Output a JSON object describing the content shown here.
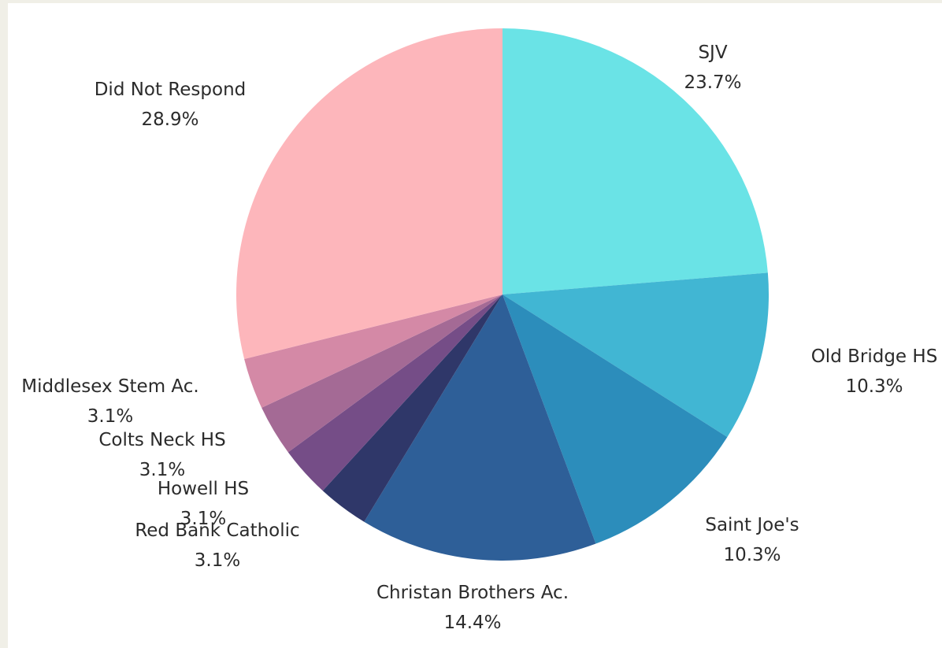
{
  "chart_data": {
    "type": "pie",
    "title": "",
    "slices": [
      {
        "label": "SJV",
        "value": 23.7,
        "display": "23.7%",
        "color": "#6ae3e6"
      },
      {
        "label": "Old Bridge HS",
        "value": 10.3,
        "display": "10.3%",
        "color": "#41b6d3"
      },
      {
        "label": "Saint Joe's",
        "value": 10.3,
        "display": "10.3%",
        "color": "#2c8dbb"
      },
      {
        "label": "Christan Brothers Ac.",
        "value": 14.4,
        "display": "14.4%",
        "color": "#2e5f98"
      },
      {
        "label": "Red Bank Catholic",
        "value": 3.1,
        "display": "3.1%",
        "color": "#2f3769"
      },
      {
        "label": "Howell HS",
        "value": 3.1,
        "display": "3.1%",
        "color": "#754d87"
      },
      {
        "label": "Colts Neck HS",
        "value": 3.1,
        "display": "3.1%",
        "color": "#a46a95"
      },
      {
        "label": "Middlesex Stem Ac.",
        "value": 3.1,
        "display": "3.1%",
        "color": "#d489a6"
      },
      {
        "label": "Did Not Respond",
        "value": 28.9,
        "display": "28.9%",
        "color": "#fdb6bb"
      }
    ],
    "start_angle": "12 o'clock",
    "direction": "clockwise",
    "legend": "none (labels beside slices)"
  }
}
